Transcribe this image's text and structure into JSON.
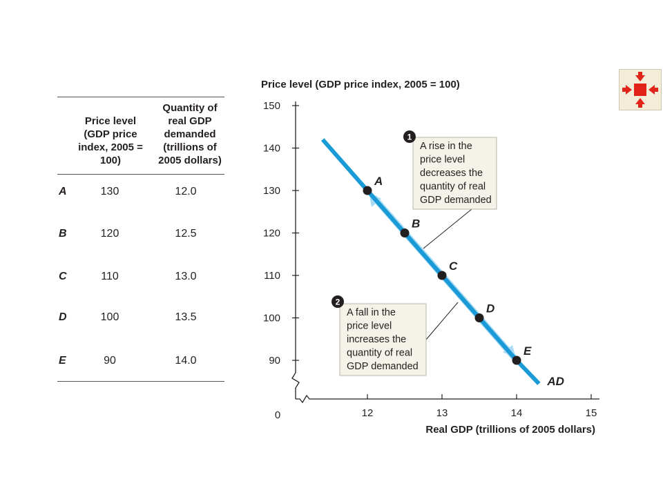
{
  "table": {
    "header_price": "Price level (GDP price index, 2005 = 100)",
    "header_quantity": "Quantity of real GDP demanded (trillions of 2005 dollars)",
    "rows": [
      {
        "label": "A",
        "price": "130",
        "quantity": "12.0"
      },
      {
        "label": "B",
        "price": "120",
        "quantity": "12.5"
      },
      {
        "label": "C",
        "price": "110",
        "quantity": "13.0"
      },
      {
        "label": "D",
        "price": "100",
        "quantity": "13.5"
      },
      {
        "label": "E",
        "price": "90",
        "quantity": "14.0"
      }
    ]
  },
  "chart_data": {
    "type": "line",
    "ylabel": "Price level (GDP price index, 2005 = 100)",
    "xlabel": "Real GDP (trillions of 2005 dollars)",
    "origin_label": "0",
    "xlim": [
      11.1,
      15
    ],
    "ylim": [
      90,
      150
    ],
    "x_ticks": [
      12,
      13,
      14,
      15
    ],
    "y_ticks": [
      90,
      100,
      110,
      120,
      130,
      140,
      150
    ],
    "axis_breaks": true,
    "series": [
      {
        "name": "AD",
        "color": "#1a9ad6",
        "x": [
          11.4,
          12.0,
          12.5,
          13.0,
          13.5,
          14.0,
          14.3
        ],
        "y": [
          142,
          130,
          120,
          110,
          100,
          90,
          84.5
        ]
      }
    ],
    "points": [
      {
        "label": "A",
        "x": 12.0,
        "y": 130
      },
      {
        "label": "B",
        "x": 12.5,
        "y": 120
      },
      {
        "label": "C",
        "x": 13.0,
        "y": 110
      },
      {
        "label": "D",
        "x": 13.5,
        "y": 100
      },
      {
        "label": "E",
        "x": 14.0,
        "y": 90
      }
    ],
    "annotations": [
      {
        "number": "1",
        "lines": [
          "A rise in the",
          "price level",
          "decreases the",
          "quantity of real",
          "GDP demanded"
        ]
      },
      {
        "number": "2",
        "lines": [
          "A fall in the",
          "price level",
          "increases the",
          "quantity of real",
          "GDP demanded"
        ]
      }
    ],
    "colors": {
      "curve": "#1a9ad6",
      "arrow": "#a9dbf4",
      "box_fill": "#f4f2e9",
      "point": "#231f20"
    }
  }
}
